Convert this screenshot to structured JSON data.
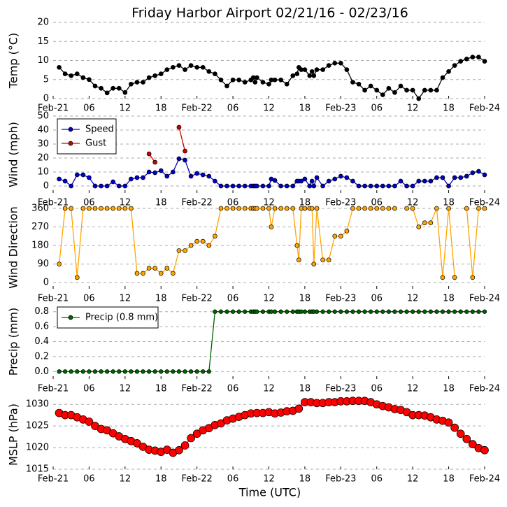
{
  "title": "Friday Harbor Airport 02/21/16 - 02/23/16",
  "xlabel": "Time (UTC)",
  "chart_data": [
    {
      "type": "line",
      "ylabel": "Temp (°C)",
      "xlim": [
        0,
        72
      ],
      "ylim": [
        0,
        20
      ],
      "yticks": [
        0,
        5,
        10,
        15,
        20
      ],
      "grid": true,
      "xticks": [
        {
          "value": 0,
          "label": "Feb-21"
        },
        {
          "value": 6,
          "label": "06"
        },
        {
          "value": 12,
          "label": "12"
        },
        {
          "value": 18,
          "label": "18"
        },
        {
          "value": 24,
          "label": "Feb-22"
        },
        {
          "value": 30,
          "label": "06"
        },
        {
          "value": 36,
          "label": "12"
        },
        {
          "value": 42,
          "label": "18"
        },
        {
          "value": 48,
          "label": "Feb-23"
        },
        {
          "value": 54,
          "label": "06"
        },
        {
          "value": 60,
          "label": "12"
        },
        {
          "value": 66,
          "label": "18"
        },
        {
          "value": 72,
          "label": "Feb-24"
        }
      ],
      "x": [
        1,
        2,
        3,
        4,
        5,
        6,
        7,
        8,
        9,
        10,
        11,
        12,
        13,
        14,
        15,
        16,
        17,
        18,
        19,
        20,
        21,
        22,
        23,
        24,
        25,
        26,
        27,
        28,
        29,
        30,
        31,
        32,
        33,
        33.4,
        33.7,
        34,
        35,
        36,
        36.4,
        37,
        38,
        39,
        40,
        40.7,
        41,
        41.4,
        42,
        42.8,
        43.2,
        43.5,
        44,
        45,
        46,
        47,
        48,
        49,
        50,
        51,
        52,
        53,
        54,
        55,
        56,
        57,
        58,
        59,
        60,
        61,
        62,
        63,
        64,
        65,
        66,
        67,
        68,
        69,
        70,
        71,
        72
      ],
      "series": [
        {
          "name": "Temp",
          "color": "#000000",
          "marker_color": "#000000",
          "values": [
            8.2,
            6.5,
            6,
            6.5,
            5.5,
            5,
            3.3,
            2.7,
            1.5,
            2.7,
            2.7,
            1.6,
            3.8,
            4.3,
            4.3,
            5.5,
            6,
            6.5,
            7.6,
            8.2,
            8.7,
            7.6,
            8.7,
            8.2,
            8.2,
            7.1,
            6.5,
            4.9,
            3.3,
            4.9,
            4.9,
            4.3,
            4.9,
            5.5,
            4.3,
            5.5,
            4.3,
            3.8,
            4.9,
            4.9,
            4.9,
            3.8,
            6,
            6.5,
            8.2,
            7.6,
            7.6,
            6,
            7.1,
            6,
            7.6,
            7.6,
            8.7,
            9.3,
            9.3,
            7.6,
            4.3,
            3.8,
            2.2,
            3.3,
            2.2,
            1,
            2.7,
            1.6,
            3.3,
            2.2,
            2.2,
            0,
            2.2,
            2.2,
            2.2,
            5.5,
            7.1,
            8.7,
            9.8,
            10.4,
            10.9,
            10.9,
            9.8
          ]
        }
      ]
    },
    {
      "type": "line",
      "ylabel": "Wind (mph)",
      "xlim": [
        0,
        72
      ],
      "ylim": [
        -5,
        50
      ],
      "yticks": [
        0,
        10,
        20,
        30,
        40,
        50
      ],
      "grid": true,
      "legend": "upper left",
      "xticks": [
        {
          "value": 0,
          "label": "Feb-21"
        },
        {
          "value": 6,
          "label": "06"
        },
        {
          "value": 12,
          "label": "12"
        },
        {
          "value": 18,
          "label": "18"
        },
        {
          "value": 24,
          "label": "Feb-22"
        },
        {
          "value": 30,
          "label": "06"
        },
        {
          "value": 36,
          "label": "12"
        },
        {
          "value": 42,
          "label": "18"
        },
        {
          "value": 48,
          "label": "Feb-23"
        },
        {
          "value": 54,
          "label": "06"
        },
        {
          "value": 60,
          "label": "12"
        },
        {
          "value": 66,
          "label": "18"
        },
        {
          "value": 72,
          "label": "Feb-24"
        }
      ],
      "series": [
        {
          "name": "Speed",
          "color": "#0000cc",
          "marker_color": "#0000cc",
          "x": [
            1,
            2,
            3,
            4,
            5,
            6,
            7,
            8,
            9,
            10,
            11,
            12,
            13,
            14,
            15,
            16,
            17,
            18,
            19,
            20,
            21,
            22,
            23,
            24,
            25,
            26,
            27,
            28,
            29,
            30,
            31,
            32,
            33,
            33.4,
            33.7,
            34,
            35,
            36,
            36.4,
            37,
            38,
            39,
            40,
            40.7,
            41,
            41.4,
            42,
            42.8,
            43.2,
            43.5,
            44,
            45,
            46,
            47,
            48,
            49,
            50,
            51,
            52,
            53,
            54,
            55,
            56,
            57,
            58,
            59,
            60,
            61,
            62,
            63,
            64,
            65,
            66,
            67,
            68,
            69,
            70,
            71,
            72
          ],
          "values": [
            5,
            3.5,
            0,
            8,
            8,
            6,
            0,
            0,
            0,
            3,
            0,
            0,
            5,
            6,
            6,
            10,
            9.5,
            11,
            7,
            10,
            19.5,
            18.5,
            7,
            9,
            8,
            7,
            3.5,
            0,
            0,
            0,
            0,
            0,
            0,
            0,
            0,
            0,
            0,
            0,
            5,
            4,
            0,
            0,
            0,
            3.5,
            3.5,
            3.5,
            5,
            0,
            3.5,
            0,
            6,
            0,
            3.5,
            5,
            7,
            6,
            3.5,
            0,
            0,
            0,
            0,
            0,
            0,
            0,
            3.5,
            0,
            0,
            3.5,
            3.5,
            3.5,
            6,
            6,
            0,
            6,
            6,
            7,
            9.5,
            10.5,
            8
          ]
        },
        {
          "name": "Gust",
          "color": "#cc0000",
          "marker_color": "#cc0000",
          "x": [
            16,
            17,
            18,
            21,
            22
          ],
          "values": [
            23,
            17,
            null,
            42,
            25
          ]
        }
      ]
    },
    {
      "type": "line",
      "ylabel": "Wind Direction",
      "xlim": [
        0,
        72
      ],
      "ylim": [
        -30,
        370
      ],
      "yticks": [
        0,
        90,
        180,
        270,
        360
      ],
      "grid": true,
      "xticks": [
        {
          "value": 0,
          "label": "Feb-21"
        },
        {
          "value": 6,
          "label": "06"
        },
        {
          "value": 12,
          "label": "12"
        },
        {
          "value": 18,
          "label": "18"
        },
        {
          "value": 24,
          "label": "Feb-22"
        },
        {
          "value": 30,
          "label": "06"
        },
        {
          "value": 36,
          "label": "12"
        },
        {
          "value": 42,
          "label": "18"
        },
        {
          "value": 48,
          "label": "Feb-23"
        },
        {
          "value": 54,
          "label": "06"
        },
        {
          "value": 60,
          "label": "12"
        },
        {
          "value": 66,
          "label": "18"
        },
        {
          "value": 72,
          "label": "Feb-24"
        }
      ],
      "x": [
        1,
        2,
        3,
        4,
        5,
        6,
        7,
        8,
        9,
        10,
        11,
        12,
        13,
        14,
        15,
        16,
        17,
        18,
        19,
        20,
        21,
        22,
        23,
        24,
        25,
        26,
        27,
        28,
        29,
        30,
        31,
        32,
        33,
        33.4,
        33.7,
        34,
        35,
        36,
        36.4,
        37,
        38,
        39,
        40,
        40.7,
        41,
        41.4,
        42,
        42.8,
        43.2,
        43.5,
        44,
        45,
        46,
        47,
        48,
        49,
        50,
        51,
        52,
        53,
        54,
        55,
        56,
        57,
        58,
        59,
        60,
        61,
        62,
        63,
        64,
        65,
        66,
        67,
        68,
        69,
        70,
        71,
        72
      ],
      "series": [
        {
          "name": "Direction",
          "color": "#ffa500",
          "marker_color": "#ffa500",
          "values": [
            90,
            360,
            360,
            25,
            360,
            360,
            360,
            360,
            360,
            360,
            360,
            360,
            360,
            45,
            45,
            70,
            70,
            45,
            70,
            45,
            155,
            155,
            180,
            200,
            200,
            180,
            225,
            360,
            360,
            360,
            360,
            360,
            360,
            360,
            360,
            360,
            360,
            360,
            270,
            360,
            360,
            360,
            360,
            180,
            110,
            360,
            360,
            360,
            360,
            90,
            360,
            110,
            110,
            225,
            225,
            250,
            360,
            360,
            360,
            360,
            360,
            360,
            360,
            360,
            null,
            360,
            360,
            270,
            290,
            290,
            360,
            25,
            360,
            25,
            null,
            360,
            25,
            360,
            360
          ]
        }
      ]
    },
    {
      "type": "line",
      "ylabel": "Precip (mm)",
      "xlim": [
        0,
        72
      ],
      "ylim": [
        -0.1,
        0.9
      ],
      "yticks": [
        {
          "value": 0,
          "label": "0.0"
        },
        0.2,
        0.4,
        0.6,
        0.8
      ],
      "grid": true,
      "legend": "upper left",
      "xticks": [
        {
          "value": 0,
          "label": "Feb-21"
        },
        {
          "value": 6,
          "label": "06"
        },
        {
          "value": 12,
          "label": "12"
        },
        {
          "value": 18,
          "label": "18"
        },
        {
          "value": 24,
          "label": "Feb-22"
        },
        {
          "value": 30,
          "label": "06"
        },
        {
          "value": 36,
          "label": "12"
        },
        {
          "value": 42,
          "label": "18"
        },
        {
          "value": 48,
          "label": "Feb-23"
        },
        {
          "value": 54,
          "label": "06"
        },
        {
          "value": 60,
          "label": "12"
        },
        {
          "value": 66,
          "label": "18"
        },
        {
          "value": 72,
          "label": "Feb-24"
        }
      ],
      "x": [
        1,
        2,
        3,
        4,
        5,
        6,
        7,
        8,
        9,
        10,
        11,
        12,
        13,
        14,
        15,
        16,
        17,
        18,
        19,
        20,
        21,
        22,
        23,
        24,
        25,
        26,
        27,
        28,
        29,
        30,
        31,
        32,
        33,
        33.4,
        33.7,
        34,
        35,
        36,
        36.4,
        37,
        38,
        39,
        40,
        40.7,
        41,
        41.4,
        42,
        42.8,
        43.2,
        43.5,
        44,
        45,
        46,
        47,
        48,
        49,
        50,
        51,
        52,
        53,
        54,
        55,
        56,
        57,
        58,
        59,
        60,
        61,
        62,
        63,
        64,
        65,
        66,
        67,
        68,
        69,
        70,
        71,
        72
      ],
      "series": [
        {
          "name": "Precip (0.8 mm)",
          "color": "#006400",
          "marker_color": "#006400",
          "values": [
            0,
            0,
            0,
            0,
            0,
            0,
            0,
            0,
            0,
            0,
            0,
            0,
            0,
            0,
            0,
            0,
            0,
            0,
            0,
            0,
            0,
            0,
            0,
            0,
            0,
            0,
            0.8,
            0.8,
            0.8,
            0.8,
            0.8,
            0.8,
            0.8,
            0.8,
            0.8,
            0.8,
            0.8,
            0.8,
            0.8,
            0.8,
            0.8,
            0.8,
            0.8,
            0.8,
            0.8,
            0.8,
            0.8,
            0.8,
            0.8,
            0.8,
            0.8,
            0.8,
            0.8,
            0.8,
            0.8,
            0.8,
            0.8,
            0.8,
            0.8,
            0.8,
            0.8,
            0.8,
            0.8,
            0.8,
            0.8,
            0.8,
            0.8,
            0.8,
            0.8,
            0.8,
            0.8,
            0.8,
            0.8,
            0.8,
            0.8,
            0.8,
            0.8,
            0.8,
            0.8
          ]
        }
      ]
    },
    {
      "type": "line",
      "ylabel": "MSLP (hPa)",
      "xlim": [
        0,
        72
      ],
      "ylim": [
        1015,
        1031
      ],
      "yticks": [
        1015,
        1020,
        1025,
        1030
      ],
      "grid": true,
      "xticks": [
        {
          "value": 0,
          "label": "Feb-21"
        },
        {
          "value": 6,
          "label": "06"
        },
        {
          "value": 12,
          "label": "12"
        },
        {
          "value": 18,
          "label": "18"
        },
        {
          "value": 24,
          "label": "Feb-22"
        },
        {
          "value": 30,
          "label": "06"
        },
        {
          "value": 36,
          "label": "12"
        },
        {
          "value": 42,
          "label": "18"
        },
        {
          "value": 48,
          "label": "Feb-23"
        },
        {
          "value": 54,
          "label": "06"
        },
        {
          "value": 60,
          "label": "12"
        },
        {
          "value": 66,
          "label": "18"
        },
        {
          "value": 72,
          "label": "Feb-24"
        }
      ],
      "x": [
        1,
        2,
        3,
        4,
        5,
        6,
        7,
        8,
        9,
        10,
        11,
        12,
        13,
        14,
        15,
        16,
        17,
        18,
        19,
        20,
        21,
        22,
        23,
        24,
        25,
        26,
        27,
        28,
        29,
        30,
        31,
        32,
        33,
        34,
        35,
        36,
        37,
        38,
        39,
        40,
        41,
        42,
        43,
        44,
        45,
        46,
        47,
        48,
        49,
        50,
        51,
        52,
        53,
        54,
        55,
        56,
        57,
        58,
        59,
        60,
        61,
        62,
        63,
        64,
        65,
        66,
        67,
        68,
        69,
        70,
        71,
        72
      ],
      "series": [
        {
          "name": "MSLP",
          "color": "#ff0000",
          "marker_color": "#ff0000",
          "values": [
            1028,
            1027.5,
            1027.5,
            1027,
            1026.5,
            1026,
            1025,
            1024.3,
            1024,
            1023.3,
            1022.6,
            1022,
            1021.5,
            1021,
            1020.2,
            1019.5,
            1019.3,
            1019,
            1019.5,
            1018.8,
            1019.4,
            1020.5,
            1022.2,
            1023.2,
            1024,
            1024.5,
            1025.2,
            1025.6,
            1026.3,
            1026.7,
            1027.1,
            1027.5,
            1027.9,
            1028,
            1028,
            1028.2,
            1027.9,
            1028.1,
            1028.4,
            1028.5,
            1029,
            1030.5,
            1030.5,
            1030.3,
            1030.3,
            1030.5,
            1030.5,
            1030.7,
            1030.7,
            1030.8,
            1030.8,
            1030.8,
            1030.5,
            1030,
            1029.6,
            1029.3,
            1028.9,
            1028.7,
            1028.2,
            1027.5,
            1027.5,
            1027.4,
            1027,
            1026.5,
            1026.2,
            1025.8,
            1024.6,
            1023.2,
            1022,
            1020.8,
            1019.9,
            1019.4
          ]
        }
      ]
    }
  ]
}
